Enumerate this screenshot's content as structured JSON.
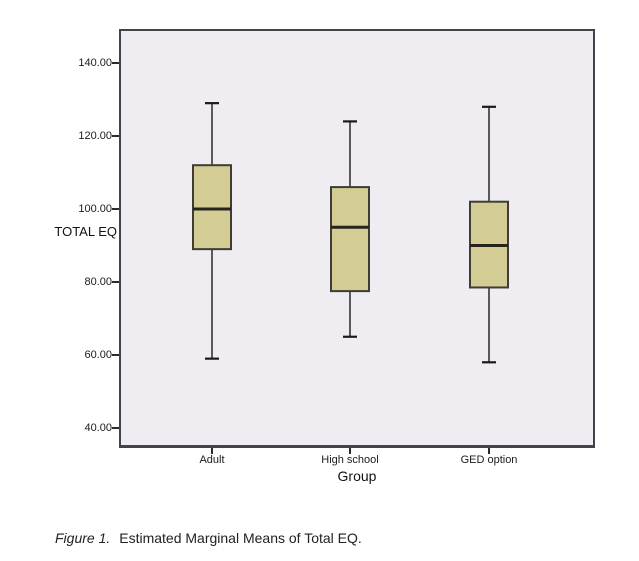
{
  "chart_data": {
    "type": "boxplot",
    "title": "",
    "xlabel": "Group",
    "ylabel": "TOTAL EQ",
    "categories": [
      "Adult",
      "High school",
      "GED option"
    ],
    "y_ticks": [
      {
        "value": 140,
        "label": "140.00"
      },
      {
        "value": 120,
        "label": "120.00"
      },
      {
        "value": 100,
        "label": "100.00"
      },
      {
        "value": 80,
        "label": "80.00"
      },
      {
        "value": 60,
        "label": "60.00"
      },
      {
        "value": 40,
        "label": "40.00"
      }
    ],
    "ylim": [
      40,
      140
    ],
    "grid": "off",
    "legend": "none",
    "boxes": [
      {
        "category": "Adult",
        "whisker_low": 59,
        "q1": 89,
        "median": 100,
        "q3": 112,
        "whisker_high": 129
      },
      {
        "category": "High school",
        "whisker_low": 65,
        "q1": 77.5,
        "median": 95,
        "q3": 106,
        "whisker_high": 124
      },
      {
        "category": "GED option",
        "whisker_low": 58,
        "q1": 78.5,
        "median": 90,
        "q3": 102,
        "whisker_high": 128
      }
    ],
    "colors": {
      "box_fill": "#d3cc95",
      "box_stroke": "#3e3c33",
      "median_line": "#26251d",
      "whisker": "#1a1a1a",
      "plot_background": "#efedf2",
      "frame": "#454349",
      "tick": "#2b2b2b"
    }
  },
  "caption": {
    "label": "Figure 1.",
    "text": "Estimated Marginal Means of Total EQ."
  }
}
